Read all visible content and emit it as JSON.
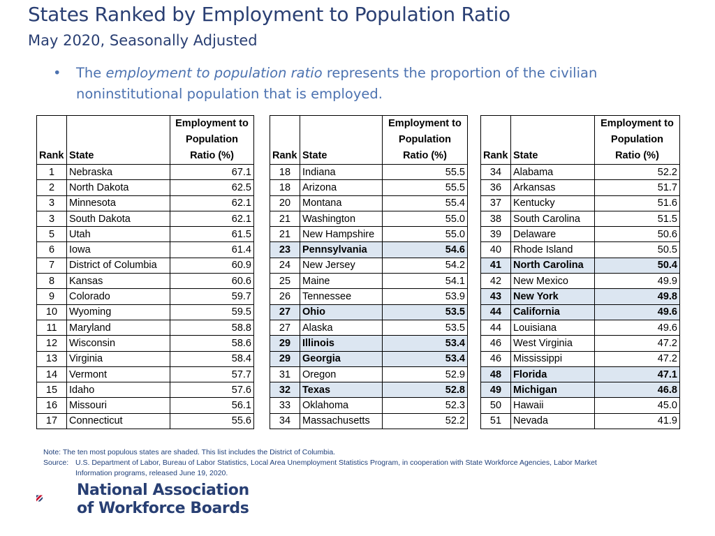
{
  "header": {
    "title": "States Ranked by Employment to Population Ratio",
    "subtitle": "May 2020, Seasonally Adjusted"
  },
  "bullet": {
    "pre": "The ",
    "emph": "employment to population ratio",
    "post": " represents the proportion of the civilian noninstitutional population that is employed."
  },
  "table_headers": {
    "rank": "Rank",
    "state": "State",
    "ratio_line1": "Employment to",
    "ratio_line2": "Population",
    "ratio_line3": "Ratio (%)"
  },
  "tables": [
    [
      {
        "rank": "1",
        "state": "Nebraska",
        "ratio": "67.1",
        "highlight": false
      },
      {
        "rank": "2",
        "state": "North Dakota",
        "ratio": "62.5",
        "highlight": false
      },
      {
        "rank": "3",
        "state": "Minnesota",
        "ratio": "62.1",
        "highlight": false
      },
      {
        "rank": "3",
        "state": "South Dakota",
        "ratio": "62.1",
        "highlight": false
      },
      {
        "rank": "5",
        "state": "Utah",
        "ratio": "61.5",
        "highlight": false
      },
      {
        "rank": "6",
        "state": "Iowa",
        "ratio": "61.4",
        "highlight": false
      },
      {
        "rank": "7",
        "state": "District of Columbia",
        "ratio": "60.9",
        "highlight": false
      },
      {
        "rank": "8",
        "state": "Kansas",
        "ratio": "60.6",
        "highlight": false
      },
      {
        "rank": "9",
        "state": "Colorado",
        "ratio": "59.7",
        "highlight": false
      },
      {
        "rank": "10",
        "state": "Wyoming",
        "ratio": "59.5",
        "highlight": false
      },
      {
        "rank": "11",
        "state": "Maryland",
        "ratio": "58.8",
        "highlight": false
      },
      {
        "rank": "12",
        "state": "Wisconsin",
        "ratio": "58.6",
        "highlight": false
      },
      {
        "rank": "13",
        "state": "Virginia",
        "ratio": "58.4",
        "highlight": false
      },
      {
        "rank": "14",
        "state": "Vermont",
        "ratio": "57.7",
        "highlight": false
      },
      {
        "rank": "15",
        "state": "Idaho",
        "ratio": "57.6",
        "highlight": false
      },
      {
        "rank": "16",
        "state": "Missouri",
        "ratio": "56.1",
        "highlight": false
      },
      {
        "rank": "17",
        "state": "Connecticut",
        "ratio": "55.6",
        "highlight": false
      }
    ],
    [
      {
        "rank": "18",
        "state": "Indiana",
        "ratio": "55.5",
        "highlight": false
      },
      {
        "rank": "18",
        "state": "Arizona",
        "ratio": "55.5",
        "highlight": false
      },
      {
        "rank": "20",
        "state": "Montana",
        "ratio": "55.4",
        "highlight": false
      },
      {
        "rank": "21",
        "state": "Washington",
        "ratio": "55.0",
        "highlight": false
      },
      {
        "rank": "21",
        "state": "New Hampshire",
        "ratio": "55.0",
        "highlight": false
      },
      {
        "rank": "23",
        "state": "Pennsylvania",
        "ratio": "54.6",
        "highlight": true
      },
      {
        "rank": "24",
        "state": "New Jersey",
        "ratio": "54.2",
        "highlight": false
      },
      {
        "rank": "25",
        "state": "Maine",
        "ratio": "54.1",
        "highlight": false
      },
      {
        "rank": "26",
        "state": "Tennessee",
        "ratio": "53.9",
        "highlight": false
      },
      {
        "rank": "27",
        "state": "Ohio",
        "ratio": "53.5",
        "highlight": true
      },
      {
        "rank": "27",
        "state": "Alaska",
        "ratio": "53.5",
        "highlight": false
      },
      {
        "rank": "29",
        "state": "Illinois",
        "ratio": "53.4",
        "highlight": true
      },
      {
        "rank": "29",
        "state": "Georgia",
        "ratio": "53.4",
        "highlight": true
      },
      {
        "rank": "31",
        "state": "Oregon",
        "ratio": "52.9",
        "highlight": false
      },
      {
        "rank": "32",
        "state": "Texas",
        "ratio": "52.8",
        "highlight": true
      },
      {
        "rank": "33",
        "state": "Oklahoma",
        "ratio": "52.3",
        "highlight": false
      },
      {
        "rank": "34",
        "state": "Massachusetts",
        "ratio": "52.2",
        "highlight": false
      }
    ],
    [
      {
        "rank": "34",
        "state": "Alabama",
        "ratio": "52.2",
        "highlight": false
      },
      {
        "rank": "36",
        "state": "Arkansas",
        "ratio": "51.7",
        "highlight": false
      },
      {
        "rank": "37",
        "state": "Kentucky",
        "ratio": "51.6",
        "highlight": false
      },
      {
        "rank": "38",
        "state": "South Carolina",
        "ratio": "51.5",
        "highlight": false
      },
      {
        "rank": "39",
        "state": "Delaware",
        "ratio": "50.6",
        "highlight": false
      },
      {
        "rank": "40",
        "state": "Rhode Island",
        "ratio": "50.5",
        "highlight": false
      },
      {
        "rank": "41",
        "state": "North Carolina",
        "ratio": "50.4",
        "highlight": true
      },
      {
        "rank": "42",
        "state": "New Mexico",
        "ratio": "49.9",
        "highlight": false
      },
      {
        "rank": "43",
        "state": "New York",
        "ratio": "49.8",
        "highlight": true
      },
      {
        "rank": "44",
        "state": "California",
        "ratio": "49.6",
        "highlight": true
      },
      {
        "rank": "44",
        "state": "Louisiana",
        "ratio": "49.6",
        "highlight": false
      },
      {
        "rank": "46",
        "state": "West Virginia",
        "ratio": "47.2",
        "highlight": false
      },
      {
        "rank": "46",
        "state": "Mississippi",
        "ratio": "47.2",
        "highlight": false
      },
      {
        "rank": "48",
        "state": "Florida",
        "ratio": "47.1",
        "highlight": true
      },
      {
        "rank": "49",
        "state": "Michigan",
        "ratio": "46.8",
        "highlight": true
      },
      {
        "rank": "50",
        "state": "Hawaii",
        "ratio": "45.0",
        "highlight": false
      },
      {
        "rank": "51",
        "state": "Nevada",
        "ratio": "41.9",
        "highlight": false
      }
    ]
  ],
  "footer": {
    "note": "Note:  The ten most populous states are shaded.  This list includes the District of Columbia.",
    "source_label": "Source:",
    "source_line1": "U.S. Department of Labor, Bureau of Labor Statistics, Local Area Unemployment Statistics Program, in cooperation with State Workforce Agencies, Labor Market",
    "source_line2": "Information programs, released June 19, 2020."
  },
  "logo": {
    "line1": "National Association",
    "line2": "of Workforce Boards",
    "colors": {
      "red": "#c8102e",
      "navy": "#283f73"
    }
  },
  "colors": {
    "title": "#2a3f73",
    "bullet": "#4c72b0",
    "highlight": "#dce6f1",
    "footer": "#1f3f7a"
  }
}
